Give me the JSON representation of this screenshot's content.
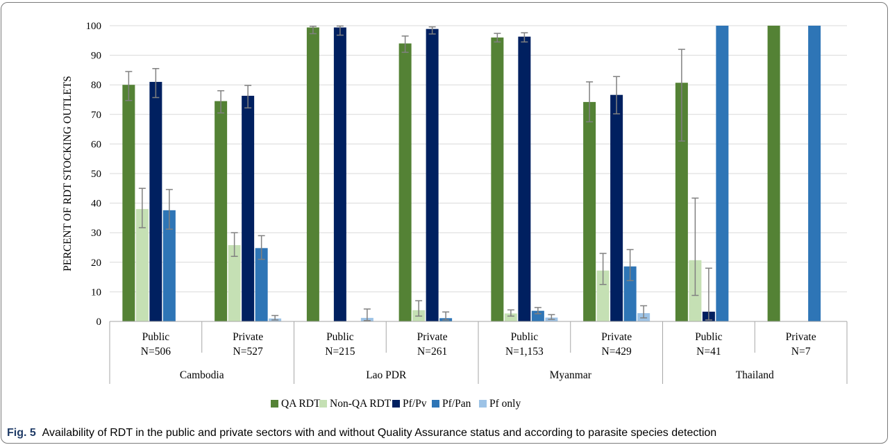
{
  "chart_data": {
    "type": "bar",
    "ylabel": "PERCENT OF RDT STOCKING OUTLETS",
    "ylim": [
      0,
      100
    ],
    "yticks": [
      "0",
      "10",
      "20",
      "30",
      "40",
      "50",
      "60",
      "70",
      "80",
      "90",
      "100"
    ],
    "grid": true,
    "legend_position": "bottom",
    "groups": [
      {
        "name": "Cambodia",
        "categories": [
          {
            "label": "Public",
            "n": "N=506"
          },
          {
            "label": "Private",
            "n": "N=527"
          }
        ]
      },
      {
        "name": "Lao PDR",
        "categories": [
          {
            "label": "Public",
            "n": "N=215"
          },
          {
            "label": "Private",
            "n": "N=261"
          }
        ]
      },
      {
        "name": "Myanmar",
        "categories": [
          {
            "label": "Public",
            "n": "N=1,153"
          },
          {
            "label": "Private",
            "n": "N=429"
          }
        ]
      },
      {
        "name": "Thailand",
        "categories": [
          {
            "label": "Public",
            "n": "N=41"
          },
          {
            "label": "Private",
            "n": "N=7"
          }
        ]
      }
    ],
    "series": [
      {
        "name": "QA RDT",
        "color": "#548235",
        "values": [
          80,
          74.5,
          99.4,
          94,
          96,
          74.2,
          80.7,
          100
        ],
        "err_low": [
          74.7,
          70.5,
          97.3,
          91,
          94.5,
          67.5,
          61,
          100
        ],
        "err_high": [
          84.5,
          78,
          99.8,
          96.5,
          97.4,
          81,
          92,
          100
        ]
      },
      {
        "name": "Non-QA RDT",
        "color": "#c5e0b4",
        "values": [
          38,
          25.8,
          0,
          3.8,
          2.7,
          17.2,
          20.7,
          0
        ],
        "err_low": [
          31.7,
          22,
          0,
          1.8,
          1.8,
          12.5,
          8.8,
          0
        ],
        "err_high": [
          45,
          30,
          0,
          7,
          3.9,
          23,
          41.7,
          0
        ]
      },
      {
        "name": "Pf/Pv",
        "color": "#002060",
        "values": [
          81,
          76.3,
          99.4,
          98.9,
          96.3,
          76.6,
          3.3,
          0
        ],
        "err_low": [
          75.7,
          72.2,
          96.8,
          97.2,
          94.5,
          70.2,
          0.5,
          0
        ],
        "err_high": [
          85.5,
          79.8,
          99.9,
          99.6,
          97.6,
          82.8,
          18,
          0
        ]
      },
      {
        "name": "Pf/Pan",
        "color": "#2e75b6",
        "values": [
          37.6,
          24.8,
          0,
          1.1,
          3.6,
          18.6,
          100,
          100
        ],
        "err_low": [
          31.2,
          21,
          0,
          0.5,
          2.6,
          13.8,
          100,
          100
        ],
        "err_high": [
          44.6,
          29,
          0,
          3.2,
          4.7,
          24.3,
          100,
          100
        ]
      },
      {
        "name": "Pf only",
        "color": "#9dc3e6",
        "values": [
          0,
          1,
          1.2,
          0,
          1.3,
          2.8,
          0,
          0
        ],
        "err_low": [
          0,
          0.5,
          0.3,
          0,
          0.7,
          1.2,
          0,
          0
        ],
        "err_high": [
          0,
          2,
          4.2,
          0,
          2.3,
          5.3,
          0,
          0
        ]
      }
    ]
  },
  "caption": {
    "fig_label": "Fig. 5",
    "text": "Availability of RDT in the public and private sectors with and without Quality Assurance status and according to parasite species detection"
  }
}
